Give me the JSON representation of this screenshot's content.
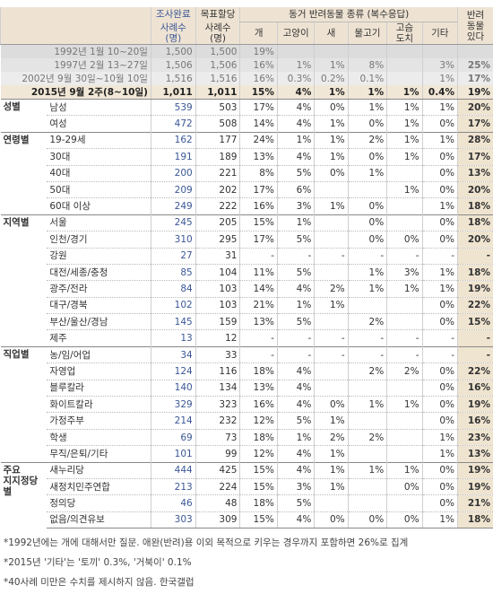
{
  "header": {
    "completed": "조사완료",
    "completed_sub": "사례수\n(명)",
    "target": "목표할당",
    "target_sub": "사례수\n(명)",
    "species_group": "동거 반려동물 종류 (복수응답)",
    "species": [
      "개",
      "고양이",
      "새",
      "물고기",
      "고슴\n도치",
      "기타"
    ],
    "has_pet": "반려\n동물\n있다"
  },
  "trend": [
    {
      "label": "1992년 1월 10~20일",
      "completed": "1,500",
      "target": "1,500",
      "cells": [
        "19%",
        null,
        null,
        null,
        null,
        null,
        null
      ]
    },
    {
      "label": "1997년 2월 13~27일",
      "completed": "1,506",
      "target": "1,506",
      "cells": [
        "16%",
        "1%",
        "1%",
        "8%",
        null,
        "3%",
        "25%"
      ]
    },
    {
      "label": "2002년 9월 30일~10월 10일",
      "completed": "1,516",
      "target": "1,516",
      "cells": [
        "16%",
        "0.3%",
        "0.2%",
        "0.1%",
        null,
        "1%",
        "17%"
      ]
    },
    {
      "label": "2015년 9월 2주(8~10일)",
      "completed": "1,011",
      "target": "1,011",
      "cells": [
        "15%",
        "4%",
        "1%",
        "1%",
        "1%",
        "0.4%",
        "19%"
      ]
    }
  ],
  "groups": [
    {
      "name": "성별",
      "rows": [
        {
          "label": "남성",
          "completed": "539",
          "target": "503",
          "cells": [
            "17%",
            "4%",
            "0%",
            "1%",
            "1%",
            "1%",
            "20%"
          ]
        },
        {
          "label": "여성",
          "completed": "472",
          "target": "508",
          "cells": [
            "14%",
            "4%",
            "1%",
            "0%",
            "1%",
            "0%",
            "17%"
          ]
        }
      ]
    },
    {
      "name": "연령별",
      "rows": [
        {
          "label": "19-29세",
          "completed": "162",
          "target": "177",
          "cells": [
            "24%",
            "1%",
            "1%",
            "2%",
            "1%",
            "1%",
            "28%"
          ]
        },
        {
          "label": "30대",
          "completed": "191",
          "target": "189",
          "cells": [
            "13%",
            "4%",
            "1%",
            "0%",
            "1%",
            "0%",
            "17%"
          ]
        },
        {
          "label": "40대",
          "completed": "200",
          "target": "221",
          "cells": [
            "8%",
            "5%",
            "0%",
            "1%",
            null,
            "0%",
            "13%"
          ]
        },
        {
          "label": "50대",
          "completed": "209",
          "target": "202",
          "cells": [
            "17%",
            "6%",
            null,
            null,
            "1%",
            "0%",
            "20%"
          ]
        },
        {
          "label": "60대 이상",
          "completed": "249",
          "target": "222",
          "cells": [
            "16%",
            "3%",
            "1%",
            "0%",
            null,
            "1%",
            "18%"
          ]
        }
      ]
    },
    {
      "name": "지역별",
      "rows": [
        {
          "label": "서울",
          "completed": "245",
          "target": "205",
          "cells": [
            "15%",
            "1%",
            null,
            "0%",
            null,
            "0%",
            "18%"
          ]
        },
        {
          "label": "인천/경기",
          "completed": "310",
          "target": "295",
          "cells": [
            "17%",
            "5%",
            null,
            "0%",
            "0%",
            "0%",
            "20%"
          ]
        },
        {
          "label": "강원",
          "completed": "27",
          "target": "31",
          "cells": [
            "-",
            "-",
            "-",
            "-",
            "-",
            "-",
            "-"
          ]
        },
        {
          "label": "대전/세종/충청",
          "completed": "85",
          "target": "104",
          "cells": [
            "11%",
            "5%",
            null,
            "1%",
            "3%",
            "1%",
            "18%"
          ]
        },
        {
          "label": "광주/전라",
          "completed": "84",
          "target": "103",
          "cells": [
            "14%",
            "4%",
            "2%",
            "1%",
            "1%",
            "1%",
            "19%"
          ]
        },
        {
          "label": "대구/경북",
          "completed": "102",
          "target": "103",
          "cells": [
            "21%",
            "1%",
            "1%",
            null,
            null,
            "0%",
            "22%"
          ]
        },
        {
          "label": "부산/울산/경남",
          "completed": "145",
          "target": "159",
          "cells": [
            "13%",
            "5%",
            null,
            "2%",
            null,
            "0%",
            "15%"
          ]
        },
        {
          "label": "제주",
          "completed": "13",
          "target": "12",
          "cells": [
            "-",
            "-",
            "-",
            "-",
            "-",
            "-",
            "-"
          ]
        }
      ]
    },
    {
      "name": "직업별",
      "rows": [
        {
          "label": "농/임/어업",
          "completed": "34",
          "target": "33",
          "cells": [
            "-",
            "-",
            "-",
            "-",
            "-",
            "-",
            "-"
          ]
        },
        {
          "label": "자영업",
          "completed": "124",
          "target": "116",
          "cells": [
            "18%",
            "4%",
            null,
            "2%",
            "2%",
            "0%",
            "22%"
          ]
        },
        {
          "label": "블루칼라",
          "completed": "140",
          "target": "134",
          "cells": [
            "13%",
            "4%",
            null,
            null,
            null,
            "0%",
            "16%"
          ]
        },
        {
          "label": "화이트칼라",
          "completed": "329",
          "target": "323",
          "cells": [
            "16%",
            "4%",
            "0%",
            "1%",
            "1%",
            "0%",
            "19%"
          ]
        },
        {
          "label": "가정주부",
          "completed": "214",
          "target": "232",
          "cells": [
            "12%",
            "5%",
            "1%",
            null,
            null,
            "0%",
            "16%"
          ]
        },
        {
          "label": "학생",
          "completed": "69",
          "target": "73",
          "cells": [
            "18%",
            "1%",
            "2%",
            "2%",
            null,
            "1%",
            "23%"
          ]
        },
        {
          "label": "무직/은퇴/기타",
          "completed": "101",
          "target": "99",
          "cells": [
            "12%",
            "4%",
            "1%",
            null,
            null,
            "1%",
            "13%"
          ]
        }
      ]
    },
    {
      "name": "주요\n지지정당별",
      "rows": [
        {
          "label": "새누리당",
          "completed": "444",
          "target": "425",
          "cells": [
            "15%",
            "4%",
            "1%",
            "1%",
            "1%",
            "0%",
            "19%"
          ]
        },
        {
          "label": "새정치민주연합",
          "completed": "213",
          "target": "224",
          "cells": [
            "15%",
            "3%",
            "1%",
            null,
            "0%",
            "0%",
            "19%"
          ]
        },
        {
          "label": "정의당",
          "completed": "46",
          "target": "48",
          "cells": [
            "18%",
            "5%",
            null,
            null,
            null,
            "0%",
            "21%"
          ]
        },
        {
          "label": "없음/의견유보",
          "completed": "303",
          "target": "309",
          "cells": [
            "15%",
            "4%",
            "0%",
            "0%",
            "0%",
            "1%",
            "18%"
          ]
        }
      ]
    }
  ],
  "notes": [
    "*1992년에는 개에 대해서만 질문. 애완(반려)용 이외 목적으로 키우는 경우까지 포함하면 26%로 집계",
    "*2015년 '기타'는 '토끼' 0.3%, '거북이' 0.1%",
    "*40사례 미만은 수치를 제시하지 않음. 한국갤럽"
  ]
}
